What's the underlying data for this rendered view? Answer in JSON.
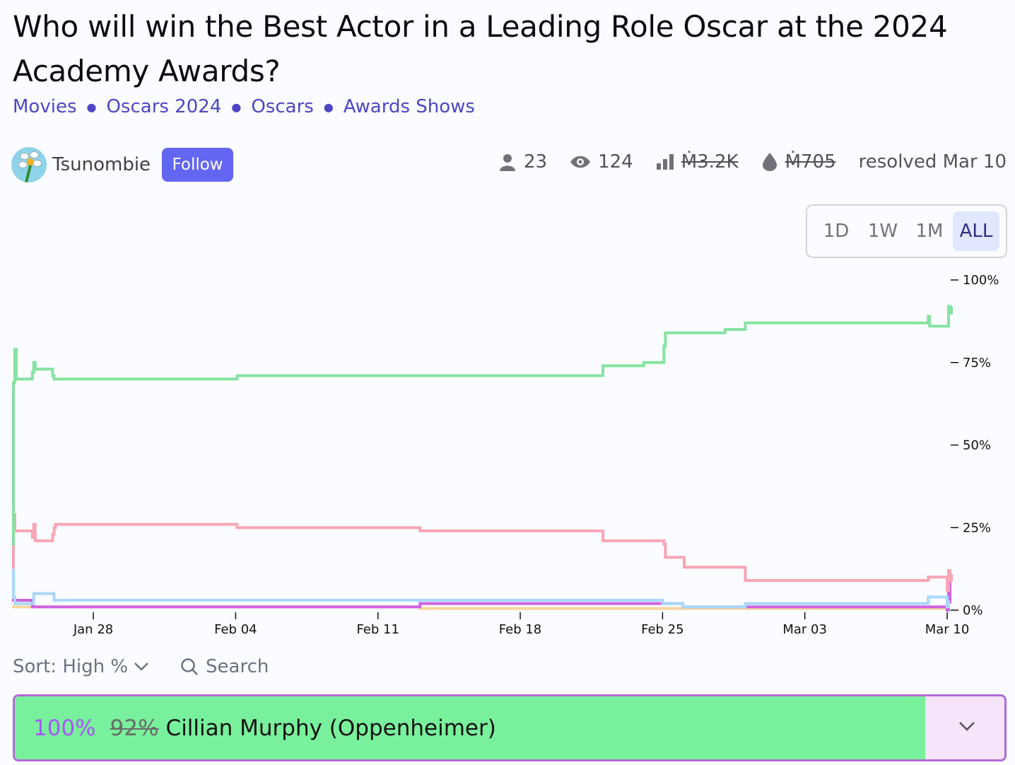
{
  "title": "Who will win the Best Actor in a Leading Role Oscar at the 2024 Academy Awards?",
  "tags": [
    "Movies",
    "Oscars 2024",
    "Oscars",
    "Awards Shows"
  ],
  "creator": {
    "name": "Tsunombie",
    "follow_label": "Follow"
  },
  "stats": {
    "traders": "23",
    "views": "124",
    "volume": "Ṁ3.2K",
    "liquidity": "Ṁ705",
    "resolved": "resolved Mar 10"
  },
  "time_range": {
    "options": [
      "1D",
      "1W",
      "1M",
      "ALL"
    ],
    "selected": "ALL"
  },
  "controls": {
    "sort_label": "Sort: High %",
    "search_label": "Search"
  },
  "answer": {
    "probability": "100%",
    "previous_probability": "92%",
    "name": "Cillian Murphy (Oppenheimer)",
    "bar_fill_fraction": 0.92,
    "bar_color": "#79f09c"
  },
  "colors": {
    "accent": "#6366f1",
    "link": "#4f46c5"
  },
  "chart_data": {
    "type": "line",
    "x_ticks": [
      "Jan 28",
      "Feb 04",
      "Feb 11",
      "Feb 18",
      "Feb 25",
      "Mar 03",
      "Mar 10"
    ],
    "y_ticks": [
      "0%",
      "25%",
      "50%",
      "75%",
      "100%"
    ],
    "ylim": [
      0,
      100
    ],
    "xlim": [
      "2024-01-24",
      "2024-03-10"
    ],
    "series": [
      {
        "color": "#86e3a1",
        "points": [
          [
            "2024-01-24",
            20
          ],
          [
            "2024-01-24",
            69
          ],
          [
            "2024-01-24",
            79
          ],
          [
            "2024-01-24",
            70
          ],
          [
            "2024-01-25",
            72
          ],
          [
            "2024-01-25",
            75
          ],
          [
            "2024-01-25",
            73
          ],
          [
            "2024-01-26",
            71
          ],
          [
            "2024-01-26",
            70
          ],
          [
            "2024-02-04",
            70
          ],
          [
            "2024-02-04",
            71
          ],
          [
            "2024-02-13",
            71
          ],
          [
            "2024-02-13",
            71
          ],
          [
            "2024-02-22",
            71
          ],
          [
            "2024-02-22",
            74
          ],
          [
            "2024-02-24",
            74
          ],
          [
            "2024-02-24",
            75
          ],
          [
            "2024-02-25",
            75
          ],
          [
            "2024-02-25",
            80
          ],
          [
            "2024-02-25",
            84
          ],
          [
            "2024-02-28",
            84
          ],
          [
            "2024-02-28",
            85
          ],
          [
            "2024-02-29",
            85
          ],
          [
            "2024-02-29",
            87
          ],
          [
            "2024-03-09",
            87
          ],
          [
            "2024-03-09",
            89
          ],
          [
            "2024-03-09",
            86
          ],
          [
            "2024-03-10",
            86
          ],
          [
            "2024-03-10",
            92
          ],
          [
            "2024-03-10",
            90
          ],
          [
            "2024-03-10",
            92
          ]
        ]
      },
      {
        "color": "#f8a5b5",
        "points": [
          [
            "2024-01-24",
            13
          ],
          [
            "2024-01-24",
            29
          ],
          [
            "2024-01-24",
            24
          ],
          [
            "2024-01-25",
            22
          ],
          [
            "2024-01-25",
            26
          ],
          [
            "2024-01-25",
            21
          ],
          [
            "2024-01-26",
            23
          ],
          [
            "2024-01-26",
            25
          ],
          [
            "2024-01-26",
            26
          ],
          [
            "2024-02-04",
            26
          ],
          [
            "2024-02-04",
            25
          ],
          [
            "2024-02-13",
            25
          ],
          [
            "2024-02-13",
            24
          ],
          [
            "2024-02-22",
            24
          ],
          [
            "2024-02-22",
            21
          ],
          [
            "2024-02-25",
            21
          ],
          [
            "2024-02-25",
            20
          ],
          [
            "2024-02-25",
            16
          ],
          [
            "2024-02-26",
            16
          ],
          [
            "2024-02-26",
            13
          ],
          [
            "2024-02-28",
            13
          ],
          [
            "2024-02-29",
            13
          ],
          [
            "2024-02-29",
            9
          ],
          [
            "2024-03-09",
            9
          ],
          [
            "2024-03-09",
            10
          ],
          [
            "2024-03-10",
            6
          ],
          [
            "2024-03-10",
            12
          ],
          [
            "2024-03-10",
            9
          ],
          [
            "2024-03-10",
            11
          ]
        ]
      },
      {
        "color": "#a8d8fa",
        "points": [
          [
            "2024-01-24",
            13
          ],
          [
            "2024-01-24",
            4
          ],
          [
            "2024-01-24",
            2
          ],
          [
            "2024-01-25",
            2
          ],
          [
            "2024-01-25",
            5
          ],
          [
            "2024-01-26",
            5
          ],
          [
            "2024-01-26",
            3
          ],
          [
            "2024-02-04",
            3
          ],
          [
            "2024-02-04",
            3
          ],
          [
            "2024-02-22",
            3
          ],
          [
            "2024-02-22",
            3
          ],
          [
            "2024-02-25",
            2
          ],
          [
            "2024-02-26",
            1
          ],
          [
            "2024-02-29",
            1
          ],
          [
            "2024-02-29",
            2
          ],
          [
            "2024-03-09",
            2
          ],
          [
            "2024-03-09",
            4
          ],
          [
            "2024-03-10",
            1
          ],
          [
            "2024-03-10",
            3
          ]
        ]
      },
      {
        "color": "#d062e0",
        "points": [
          [
            "2024-01-24",
            3
          ],
          [
            "2024-01-25",
            1
          ],
          [
            "2024-02-13",
            1
          ],
          [
            "2024-02-13",
            2
          ],
          [
            "2024-02-22",
            2
          ],
          [
            "2024-02-22",
            2
          ],
          [
            "2024-02-25",
            2
          ],
          [
            "2024-02-26",
            1
          ],
          [
            "2024-03-09",
            1
          ],
          [
            "2024-03-10",
            0
          ],
          [
            "2024-03-10",
            10
          ],
          [
            "2024-03-10",
            2
          ]
        ]
      },
      {
        "color": "#f6d69e",
        "points": [
          [
            "2024-01-24",
            1
          ],
          [
            "2024-02-13",
            1
          ],
          [
            "2024-02-13",
            0.5
          ],
          [
            "2024-03-10",
            0.5
          ]
        ]
      }
    ]
  }
}
